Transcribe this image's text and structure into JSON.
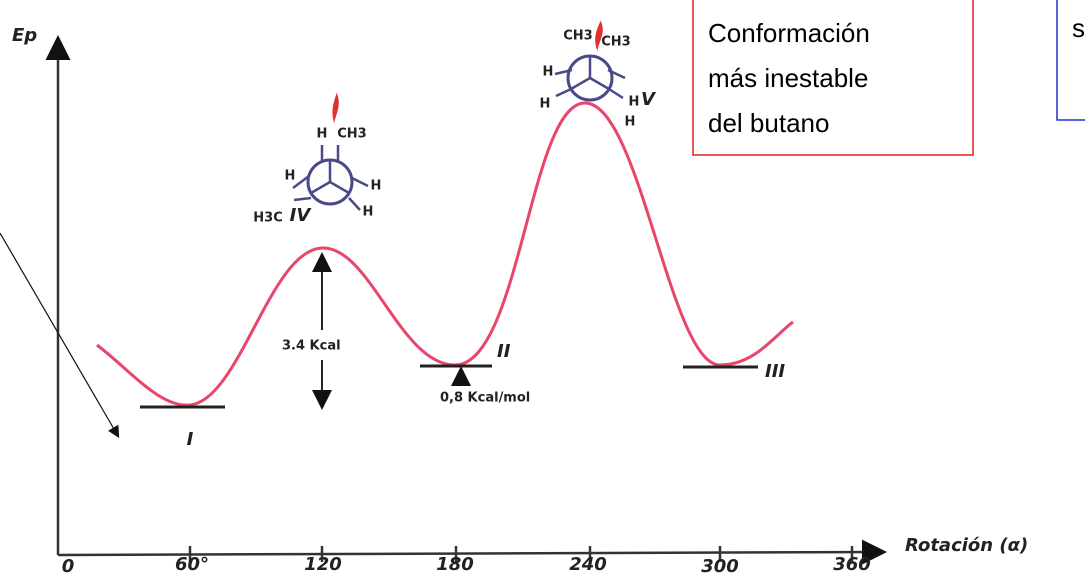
{
  "axes": {
    "y_label": "Ep",
    "x_label": "Rotación (α)",
    "x_ticks": [
      "0",
      "60°",
      "120",
      "180",
      "240",
      "300",
      "360"
    ]
  },
  "levels": [
    "I",
    "II",
    "III"
  ],
  "energy_barrier": "3.4 Kcal",
  "energy_difference": "0,8 Kcal/mol",
  "projections": [
    {
      "label": "IV",
      "substituents": [
        "H",
        "CH3",
        "H3C",
        "H",
        "H",
        "H"
      ]
    },
    {
      "label": "V",
      "substituents": [
        "CH3",
        "CH3",
        "H",
        "H",
        "H",
        "H"
      ]
    }
  ],
  "callout": {
    "lines": [
      "Conformación",
      "más inestable",
      "del butano"
    ]
  },
  "side_note": "s"
}
